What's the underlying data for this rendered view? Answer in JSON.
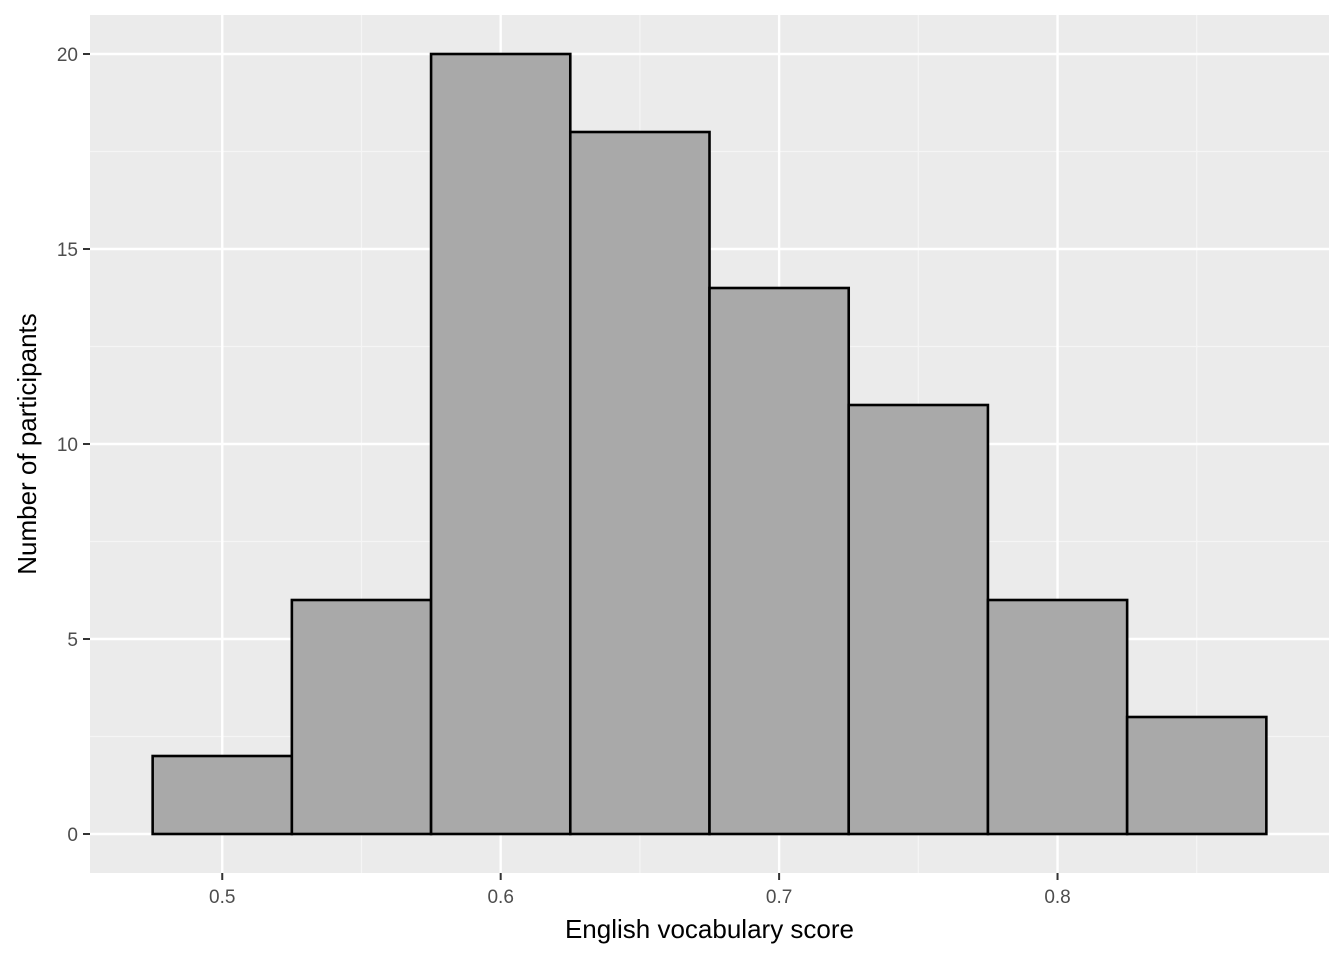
{
  "chart_data": {
    "type": "bar",
    "subtype": "histogram",
    "title": "",
    "xlabel": "English vocabulary score",
    "ylabel": "Number of participants",
    "bin_width": 0.05,
    "bins": [
      {
        "start": 0.475,
        "end": 0.525,
        "count": 2
      },
      {
        "start": 0.525,
        "end": 0.575,
        "count": 6
      },
      {
        "start": 0.575,
        "end": 0.625,
        "count": 20
      },
      {
        "start": 0.625,
        "end": 0.675,
        "count": 18
      },
      {
        "start": 0.675,
        "end": 0.725,
        "count": 14
      },
      {
        "start": 0.725,
        "end": 0.775,
        "count": 11
      },
      {
        "start": 0.775,
        "end": 0.825,
        "count": 6
      },
      {
        "start": 0.825,
        "end": 0.875,
        "count": 3
      }
    ],
    "xlim": [
      0.4525,
      0.8975
    ],
    "ylim": [
      -1,
      21
    ],
    "x_ticks": [
      0.5,
      0.6,
      0.7,
      0.8
    ],
    "x_tick_labels": [
      "0.5",
      "0.6",
      "0.7",
      "0.8"
    ],
    "y_ticks": [
      0,
      5,
      10,
      15,
      20
    ],
    "y_tick_labels": [
      "0",
      "5",
      "10",
      "15",
      "20"
    ],
    "grid": true,
    "colors": {
      "panel_background": "#ebebeb",
      "grid_major": "#ffffff",
      "grid_minor": "#f5f5f5",
      "bar_fill": "#a9a9a9",
      "bar_outline": "#000000",
      "tick_mark": "#333333"
    }
  }
}
